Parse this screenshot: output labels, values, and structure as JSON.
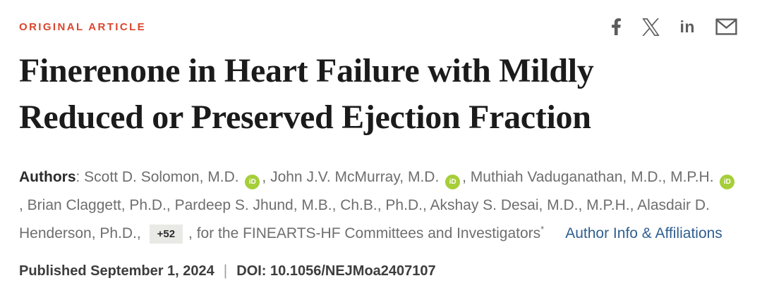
{
  "eyebrow": {
    "label": "ORIGINAL ARTICLE",
    "color": "#d9462c"
  },
  "share": {
    "icons": [
      {
        "name": "facebook-icon"
      },
      {
        "name": "x-icon"
      },
      {
        "name": "linkedin-icon",
        "label": "in"
      },
      {
        "name": "email-icon"
      }
    ],
    "icon_color": "#5c5c5c"
  },
  "title": {
    "line1": "Finerenone in Heart Failure with Mildly",
    "line2": "Reduced or Preserved Ejection Fraction"
  },
  "authors": {
    "orcid_color": "#a6ce39",
    "segments": [
      {
        "type": "label",
        "text": "Authors"
      },
      {
        "type": "text",
        "text": ": Scott D. Solomon, M.D. "
      },
      {
        "type": "orcid"
      },
      {
        "type": "text",
        "text": ", John J.V. McMurray, M.D. "
      },
      {
        "type": "orcid"
      },
      {
        "type": "text",
        "text": ", Muthiah Vaduganathan, M.D., M.P.H. "
      },
      {
        "type": "orcid"
      },
      {
        "type": "text",
        "text": ", Brian Claggett, Ph.D., Pardeep S. Jhund, M.B., Ch.B., Ph.D., Akshay S. Desai, M.D., M.P.H., Alasdair D. Henderson, Ph.D., "
      },
      {
        "type": "badge",
        "text": "+52"
      },
      {
        "type": "text",
        "text": ", for the FINEARTS-HF Committees and Investigators"
      },
      {
        "type": "sup",
        "text": "*"
      },
      {
        "type": "link",
        "text": "Author Info & Affiliations"
      }
    ]
  },
  "footer": {
    "published": "Published September 1, 2024",
    "separator": "|",
    "doi": "DOI: 10.1056/NEJMoa2407107"
  }
}
